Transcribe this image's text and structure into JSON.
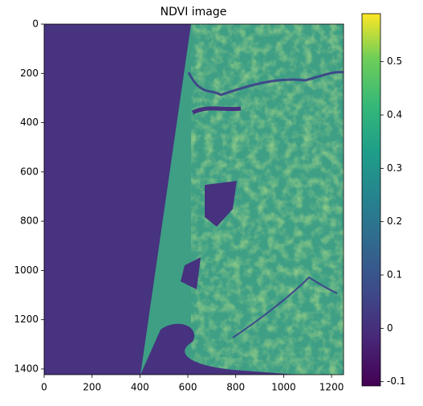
{
  "chart_data": {
    "type": "image",
    "title": "NDVI image",
    "xlim": [
      0,
      1250
    ],
    "xticks": [
      0,
      200,
      400,
      600,
      800,
      1000,
      1200
    ],
    "ylim": [
      1423,
      0
    ],
    "yticks": [
      0,
      200,
      400,
      600,
      800,
      1000,
      1200,
      1400
    ],
    "colormap": "viridis",
    "colorbar": {
      "lim": [
        -0.108,
        0.59
      ],
      "ticks": [
        -0.1,
        0.0,
        0.1,
        0.2,
        0.3,
        0.4,
        0.5
      ]
    }
  }
}
